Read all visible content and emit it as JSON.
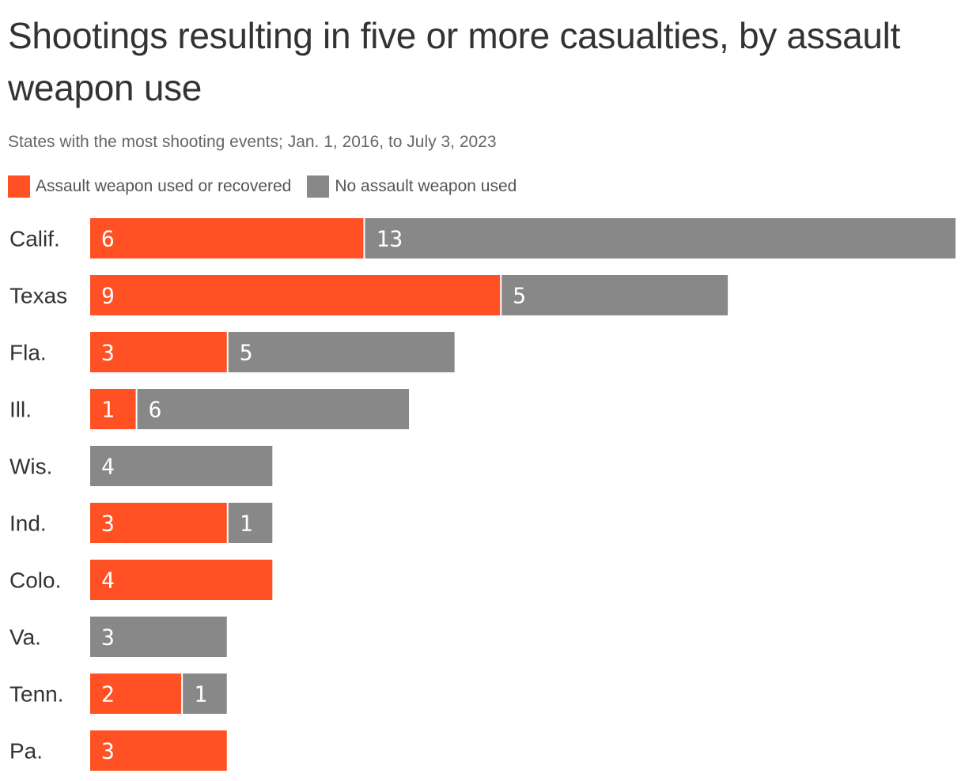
{
  "chart_data": {
    "type": "bar",
    "orientation": "horizontal",
    "stacked": true,
    "title": "Shootings resulting in five or more casualties, by assault weapon use",
    "subtitle": "States with the most shooting events; Jan. 1, 2016, to July 3, 2023",
    "categories": [
      "Calif.",
      "Texas",
      "Fla.",
      "Ill.",
      "Wis.",
      "Ind.",
      "Colo.",
      "Va.",
      "Tenn.",
      "Pa."
    ],
    "series": [
      {
        "name": "Assault weapon used or recovered",
        "color": "#ff5123",
        "values": [
          6,
          9,
          3,
          1,
          0,
          3,
          4,
          0,
          2,
          3
        ]
      },
      {
        "name": "No assault weapon used",
        "color": "#888888",
        "values": [
          13,
          5,
          5,
          6,
          4,
          1,
          0,
          3,
          1,
          0
        ]
      }
    ],
    "xlim": [
      0,
      19
    ],
    "grid": false,
    "legend": "top-left",
    "data_labels": true
  }
}
